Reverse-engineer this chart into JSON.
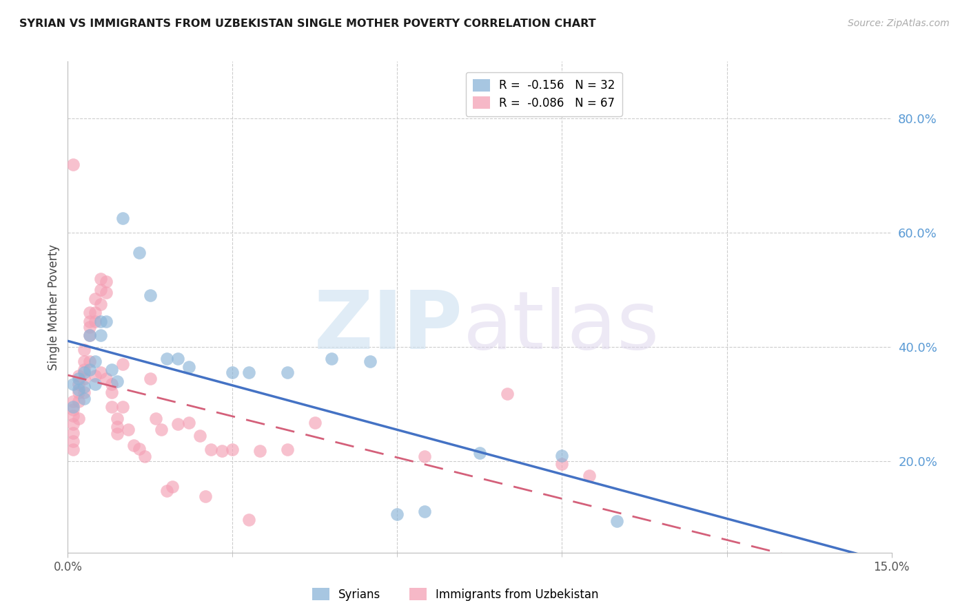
{
  "title": "SYRIAN VS IMMIGRANTS FROM UZBEKISTAN SINGLE MOTHER POVERTY CORRELATION CHART",
  "source": "Source: ZipAtlas.com",
  "ylabel": "Single Mother Poverty",
  "ytick_labels": [
    "80.0%",
    "60.0%",
    "40.0%",
    "20.0%"
  ],
  "ytick_values": [
    0.8,
    0.6,
    0.4,
    0.2
  ],
  "xlim": [
    0.0,
    0.15
  ],
  "ylim": [
    0.04,
    0.9
  ],
  "xtick_positions": [
    0.0,
    0.15
  ],
  "xtick_labels": [
    "0.0%",
    "15.0%"
  ],
  "color_syrians": "#8ab4d8",
  "color_uzbekistan": "#f4a0b5",
  "color_line_syrians": "#4472c4",
  "color_line_uzbekistan": "#d4607a",
  "syrians_x": [
    0.001,
    0.001,
    0.002,
    0.002,
    0.003,
    0.003,
    0.003,
    0.004,
    0.004,
    0.005,
    0.005,
    0.006,
    0.006,
    0.007,
    0.008,
    0.009,
    0.01,
    0.013,
    0.015,
    0.018,
    0.02,
    0.022,
    0.03,
    0.033,
    0.04,
    0.048,
    0.055,
    0.06,
    0.065,
    0.075,
    0.09,
    0.1
  ],
  "syrians_y": [
    0.335,
    0.295,
    0.345,
    0.325,
    0.355,
    0.33,
    0.31,
    0.42,
    0.36,
    0.375,
    0.335,
    0.445,
    0.42,
    0.445,
    0.36,
    0.34,
    0.625,
    0.565,
    0.49,
    0.38,
    0.38,
    0.365,
    0.355,
    0.355,
    0.355,
    0.38,
    0.375,
    0.107,
    0.112,
    0.215,
    0.21,
    0.095
  ],
  "uzbekistan_x": [
    0.001,
    0.001,
    0.001,
    0.001,
    0.001,
    0.001,
    0.001,
    0.001,
    0.002,
    0.002,
    0.002,
    0.002,
    0.002,
    0.003,
    0.003,
    0.003,
    0.003,
    0.003,
    0.004,
    0.004,
    0.004,
    0.004,
    0.004,
    0.005,
    0.005,
    0.005,
    0.005,
    0.006,
    0.006,
    0.006,
    0.006,
    0.007,
    0.007,
    0.007,
    0.008,
    0.008,
    0.008,
    0.009,
    0.009,
    0.009,
    0.01,
    0.01,
    0.011,
    0.012,
    0.013,
    0.014,
    0.015,
    0.016,
    0.017,
    0.018,
    0.019,
    0.02,
    0.022,
    0.024,
    0.025,
    0.026,
    0.028,
    0.03,
    0.033,
    0.035,
    0.04,
    0.045,
    0.065,
    0.08,
    0.09,
    0.095
  ],
  "uzbekistan_y": [
    0.29,
    0.305,
    0.28,
    0.265,
    0.25,
    0.235,
    0.22,
    0.72,
    0.35,
    0.335,
    0.32,
    0.305,
    0.275,
    0.395,
    0.375,
    0.36,
    0.345,
    0.32,
    0.46,
    0.445,
    0.435,
    0.42,
    0.375,
    0.485,
    0.46,
    0.445,
    0.35,
    0.52,
    0.5,
    0.475,
    0.355,
    0.515,
    0.495,
    0.345,
    0.335,
    0.32,
    0.295,
    0.275,
    0.26,
    0.248,
    0.37,
    0.295,
    0.255,
    0.228,
    0.222,
    0.208,
    0.345,
    0.275,
    0.255,
    0.148,
    0.155,
    0.265,
    0.267,
    0.245,
    0.138,
    0.22,
    0.218,
    0.22,
    0.098,
    0.218,
    0.22,
    0.268,
    0.208,
    0.318,
    0.195,
    0.175
  ]
}
